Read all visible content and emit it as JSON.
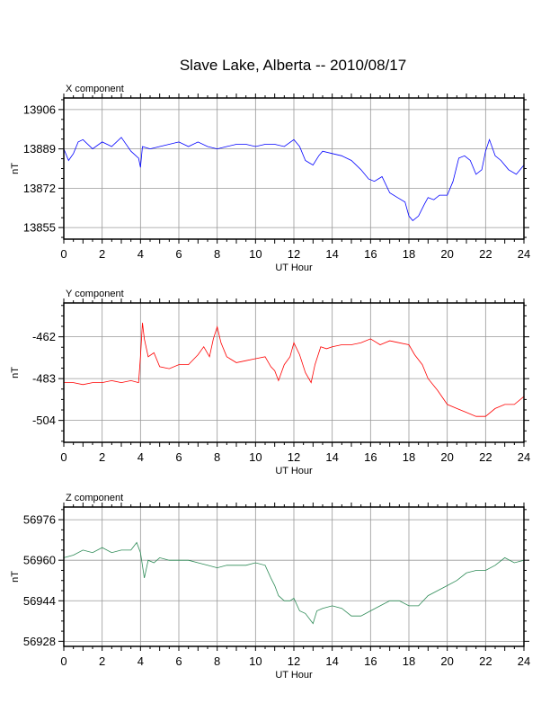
{
  "title": "Slave Lake, Alberta -- 2010/08/17",
  "chart_data": [
    {
      "type": "line",
      "panel_label": "X component",
      "xlabel": "UT Hour",
      "ylabel": "nT",
      "xlim": [
        0,
        24
      ],
      "ylim": [
        13850,
        13911
      ],
      "xticks": [
        0,
        2,
        4,
        6,
        8,
        10,
        12,
        14,
        16,
        18,
        20,
        22,
        24
      ],
      "yticks": [
        13906,
        13889,
        13872,
        13855
      ],
      "color": "#0000ff",
      "grid": true,
      "series": [
        {
          "x": [
            0,
            0.25,
            0.5,
            0.75,
            1,
            1.5,
            2,
            2.5,
            3,
            3.5,
            3.9,
            4,
            4.1,
            4.5,
            5,
            5.5,
            6,
            6.5,
            7,
            7.5,
            8,
            8.5,
            9,
            9.5,
            10,
            10.5,
            11,
            11.5,
            12,
            12.3,
            12.6,
            12.8,
            13,
            13.3,
            13.5,
            14,
            14.5,
            15,
            15.5,
            15.9,
            16.2,
            16.6,
            17,
            17.4,
            17.8,
            18,
            18.2,
            18.5,
            18.8,
            19,
            19.3,
            19.6,
            20,
            20.3,
            20.6,
            20.9,
            21.2,
            21.5,
            21.8,
            22,
            22.2,
            22.5,
            22.8,
            23.2,
            23.6,
            24
          ],
          "y": [
            13889,
            13884,
            13887,
            13892,
            13893,
            13889,
            13892,
            13890,
            13894,
            13888,
            13885,
            13881,
            13890,
            13889,
            13890,
            13891,
            13892,
            13890,
            13892,
            13890,
            13889,
            13890,
            13891,
            13891,
            13890,
            13891,
            13891,
            13890,
            13893,
            13890,
            13884,
            13883,
            13882,
            13886,
            13888,
            13887,
            13886,
            13884,
            13880,
            13876,
            13875,
            13877,
            13870,
            13868,
            13866,
            13860,
            13858,
            13860,
            13865,
            13868,
            13867,
            13869,
            13869,
            13875,
            13885,
            13886,
            13884,
            13878,
            13880,
            13888,
            13893,
            13886,
            13884,
            13880,
            13878,
            13882
          ]
        }
      ]
    },
    {
      "type": "line",
      "panel_label": "Y component",
      "xlabel": "UT Hour",
      "ylabel": "nT",
      "xlim": [
        0,
        24
      ],
      "ylim": [
        -515,
        -445
      ],
      "xticks": [
        0,
        2,
        4,
        6,
        8,
        10,
        12,
        14,
        16,
        18,
        20,
        22,
        24
      ],
      "yticks": [
        -462,
        -483,
        -504
      ],
      "color": "#ff0000",
      "grid": true,
      "series": [
        {
          "x": [
            0,
            0.5,
            1,
            1.5,
            2,
            2.5,
            3,
            3.5,
            3.9,
            4.0,
            4.1,
            4.2,
            4.4,
            4.7,
            5,
            5.5,
            6,
            6.5,
            7,
            7.3,
            7.6,
            7.8,
            8,
            8.2,
            8.5,
            9,
            9.5,
            10,
            10.5,
            10.8,
            11,
            11.2,
            11.5,
            11.8,
            12,
            12.3,
            12.6,
            12.9,
            13.1,
            13.4,
            13.7,
            14,
            14.5,
            15,
            15.5,
            16,
            16.5,
            17,
            17.5,
            18,
            18.3,
            18.7,
            19,
            19.5,
            20,
            20.5,
            21,
            21.5,
            22,
            22.5,
            23,
            23.5,
            24
          ],
          "y": [
            -485,
            -485,
            -486,
            -485,
            -485,
            -484,
            -485,
            -484,
            -485,
            -472,
            -455,
            -463,
            -472,
            -470,
            -477,
            -478,
            -476,
            -476,
            -471,
            -467,
            -472,
            -463,
            -457,
            -465,
            -472,
            -475,
            -474,
            -473,
            -472,
            -477,
            -479,
            -484,
            -476,
            -472,
            -465,
            -471,
            -480,
            -485,
            -476,
            -467,
            -468,
            -467,
            -466,
            -466,
            -465,
            -463,
            -466,
            -464,
            -465,
            -466,
            -471,
            -476,
            -483,
            -489,
            -496,
            -498,
            -500,
            -502,
            -502,
            -498,
            -496,
            -496,
            -492
          ]
        }
      ]
    },
    {
      "type": "line",
      "panel_label": "Z component",
      "xlabel": "UT Hour",
      "ylabel": "nT",
      "xlim": [
        0,
        24
      ],
      "ylim": [
        56926,
        56981
      ],
      "xticks": [
        0,
        2,
        4,
        6,
        8,
        10,
        12,
        14,
        16,
        18,
        20,
        22,
        24
      ],
      "yticks": [
        56976,
        56960,
        56944,
        56928
      ],
      "color": "#2e8b57",
      "grid": true,
      "series": [
        {
          "x": [
            0,
            0.5,
            1,
            1.5,
            2,
            2.5,
            3,
            3.5,
            3.8,
            4,
            4.2,
            4.4,
            4.7,
            5,
            5.5,
            6,
            6.5,
            7,
            7.5,
            8,
            8.5,
            9,
            9.5,
            10,
            10.5,
            10.8,
            11,
            11.2,
            11.5,
            11.8,
            12,
            12.3,
            12.6,
            13,
            13.2,
            13.5,
            14,
            14.5,
            15,
            15.5,
            16,
            16.5,
            17,
            17.5,
            18,
            18.5,
            19,
            19.5,
            20,
            20.5,
            21,
            21.5,
            22,
            22.5,
            23,
            23.5,
            24
          ],
          "y": [
            56961,
            56962,
            56964,
            56963,
            56965,
            56963,
            56964,
            56964,
            56967,
            56963,
            56953,
            56960,
            56959,
            56961,
            56960,
            56960,
            56960,
            56959,
            56958,
            56957,
            56958,
            56958,
            56958,
            56959,
            56958,
            56953,
            56950,
            56946,
            56944,
            56944,
            56945,
            56940,
            56939,
            56935,
            56940,
            56941,
            56942,
            56941,
            56938,
            56938,
            56940,
            56942,
            56944,
            56944,
            56942,
            56942,
            56946,
            56948,
            56950,
            56952,
            56955,
            56956,
            56956,
            56958,
            56961,
            56959,
            56960
          ]
        }
      ]
    }
  ]
}
